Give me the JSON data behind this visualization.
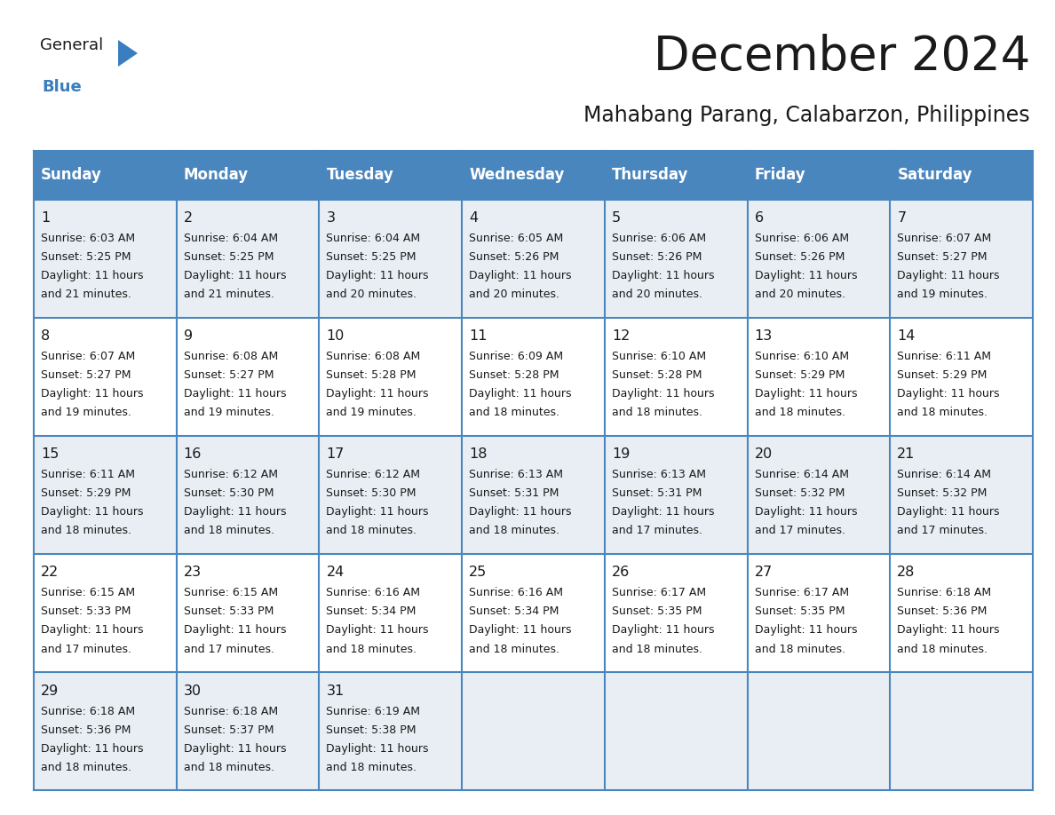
{
  "title": "December 2024",
  "subtitle": "Mahabang Parang, Calabarzon, Philippines",
  "header_color": "#4a86be",
  "header_text_color": "#ffffff",
  "row_bg_odd": "#e8eef4",
  "row_bg_even": "#ffffff",
  "border_color": "#4a86be",
  "days_of_week": [
    "Sunday",
    "Monday",
    "Tuesday",
    "Wednesday",
    "Thursday",
    "Friday",
    "Saturday"
  ],
  "weeks": [
    [
      {
        "day": 1,
        "sunrise": "6:03 AM",
        "sunset": "5:25 PM",
        "daylight": "11 hours and 21 minutes."
      },
      {
        "day": 2,
        "sunrise": "6:04 AM",
        "sunset": "5:25 PM",
        "daylight": "11 hours and 21 minutes."
      },
      {
        "day": 3,
        "sunrise": "6:04 AM",
        "sunset": "5:25 PM",
        "daylight": "11 hours and 20 minutes."
      },
      {
        "day": 4,
        "sunrise": "6:05 AM",
        "sunset": "5:26 PM",
        "daylight": "11 hours and 20 minutes."
      },
      {
        "day": 5,
        "sunrise": "6:06 AM",
        "sunset": "5:26 PM",
        "daylight": "11 hours and 20 minutes."
      },
      {
        "day": 6,
        "sunrise": "6:06 AM",
        "sunset": "5:26 PM",
        "daylight": "11 hours and 20 minutes."
      },
      {
        "day": 7,
        "sunrise": "6:07 AM",
        "sunset": "5:27 PM",
        "daylight": "11 hours and 19 minutes."
      }
    ],
    [
      {
        "day": 8,
        "sunrise": "6:07 AM",
        "sunset": "5:27 PM",
        "daylight": "11 hours and 19 minutes."
      },
      {
        "day": 9,
        "sunrise": "6:08 AM",
        "sunset": "5:27 PM",
        "daylight": "11 hours and 19 minutes."
      },
      {
        "day": 10,
        "sunrise": "6:08 AM",
        "sunset": "5:28 PM",
        "daylight": "11 hours and 19 minutes."
      },
      {
        "day": 11,
        "sunrise": "6:09 AM",
        "sunset": "5:28 PM",
        "daylight": "11 hours and 18 minutes."
      },
      {
        "day": 12,
        "sunrise": "6:10 AM",
        "sunset": "5:28 PM",
        "daylight": "11 hours and 18 minutes."
      },
      {
        "day": 13,
        "sunrise": "6:10 AM",
        "sunset": "5:29 PM",
        "daylight": "11 hours and 18 minutes."
      },
      {
        "day": 14,
        "sunrise": "6:11 AM",
        "sunset": "5:29 PM",
        "daylight": "11 hours and 18 minutes."
      }
    ],
    [
      {
        "day": 15,
        "sunrise": "6:11 AM",
        "sunset": "5:29 PM",
        "daylight": "11 hours and 18 minutes."
      },
      {
        "day": 16,
        "sunrise": "6:12 AM",
        "sunset": "5:30 PM",
        "daylight": "11 hours and 18 minutes."
      },
      {
        "day": 17,
        "sunrise": "6:12 AM",
        "sunset": "5:30 PM",
        "daylight": "11 hours and 18 minutes."
      },
      {
        "day": 18,
        "sunrise": "6:13 AM",
        "sunset": "5:31 PM",
        "daylight": "11 hours and 18 minutes."
      },
      {
        "day": 19,
        "sunrise": "6:13 AM",
        "sunset": "5:31 PM",
        "daylight": "11 hours and 17 minutes."
      },
      {
        "day": 20,
        "sunrise": "6:14 AM",
        "sunset": "5:32 PM",
        "daylight": "11 hours and 17 minutes."
      },
      {
        "day": 21,
        "sunrise": "6:14 AM",
        "sunset": "5:32 PM",
        "daylight": "11 hours and 17 minutes."
      }
    ],
    [
      {
        "day": 22,
        "sunrise": "6:15 AM",
        "sunset": "5:33 PM",
        "daylight": "11 hours and 17 minutes."
      },
      {
        "day": 23,
        "sunrise": "6:15 AM",
        "sunset": "5:33 PM",
        "daylight": "11 hours and 17 minutes."
      },
      {
        "day": 24,
        "sunrise": "6:16 AM",
        "sunset": "5:34 PM",
        "daylight": "11 hours and 18 minutes."
      },
      {
        "day": 25,
        "sunrise": "6:16 AM",
        "sunset": "5:34 PM",
        "daylight": "11 hours and 18 minutes."
      },
      {
        "day": 26,
        "sunrise": "6:17 AM",
        "sunset": "5:35 PM",
        "daylight": "11 hours and 18 minutes."
      },
      {
        "day": 27,
        "sunrise": "6:17 AM",
        "sunset": "5:35 PM",
        "daylight": "11 hours and 18 minutes."
      },
      {
        "day": 28,
        "sunrise": "6:18 AM",
        "sunset": "5:36 PM",
        "daylight": "11 hours and 18 minutes."
      }
    ],
    [
      {
        "day": 29,
        "sunrise": "6:18 AM",
        "sunset": "5:36 PM",
        "daylight": "11 hours and 18 minutes."
      },
      {
        "day": 30,
        "sunrise": "6:18 AM",
        "sunset": "5:37 PM",
        "daylight": "11 hours and 18 minutes."
      },
      {
        "day": 31,
        "sunrise": "6:19 AM",
        "sunset": "5:38 PM",
        "daylight": "11 hours and 18 minutes."
      },
      null,
      null,
      null,
      null
    ]
  ],
  "logo_color_general": "#1a1a1a",
  "logo_color_blue": "#3a7ebf",
  "title_fontsize": 38,
  "subtitle_fontsize": 17,
  "day_header_fontsize": 12,
  "day_num_fontsize": 11.5,
  "cell_text_fontsize": 9
}
